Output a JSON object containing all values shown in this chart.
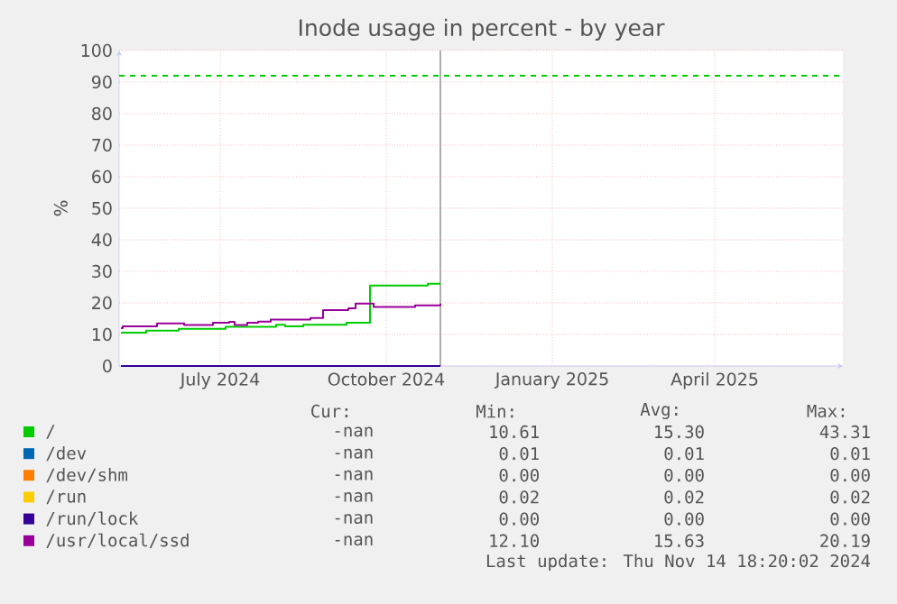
{
  "chart_data": {
    "type": "step",
    "title": "Inode usage in percent - by year",
    "ylabel": "%",
    "xlim": [
      "2024-05-06",
      "2025-06-11"
    ],
    "ylim": [
      0,
      100
    ],
    "xticks": [
      {
        "value": "2024-07-01",
        "label": "July 2024"
      },
      {
        "value": "2024-10-01",
        "label": "October 2024"
      },
      {
        "value": "2025-01-01",
        "label": "January 2025"
      },
      {
        "value": "2025-04-01",
        "label": "April 2025"
      }
    ],
    "yticks": [
      0,
      10,
      20,
      30,
      40,
      50,
      60,
      70,
      80,
      90,
      100
    ],
    "grid": true,
    "legend": "bottom",
    "series": [
      {
        "name": "/",
        "color": "#00cc00",
        "x": [
          "2024-05-07",
          "2024-05-21",
          "2024-06-08",
          "2024-07-04",
          "2024-08-01",
          "2024-08-06",
          "2024-08-16",
          "2024-09-09",
          "2024-09-22",
          "2024-10-24",
          "2024-10-31"
        ],
        "values": [
          10.6,
          11.2,
          11.8,
          12.4,
          13.1,
          12.6,
          13.1,
          13.7,
          25.5,
          26.1,
          26.1
        ]
      },
      {
        "name": "/dev",
        "color": "#0066b3",
        "values": [
          null,
          null
        ]
      },
      {
        "name": "/dev/shm",
        "color": "#ff8000",
        "values": [
          null,
          null
        ]
      },
      {
        "name": "/run",
        "color": "#ffcc00",
        "values": [
          null,
          null
        ]
      },
      {
        "name": "/run/lock",
        "color": "#330099",
        "x": [
          "2024-05-07",
          "2024-10-31"
        ],
        "values": [
          0,
          0
        ]
      },
      {
        "name": "/usr/local/ssd",
        "color": "#990099",
        "x": [
          "2024-05-07",
          "2024-05-08",
          "2024-05-27",
          "2024-06-11",
          "2024-06-27",
          "2024-07-06",
          "2024-07-09",
          "2024-07-16",
          "2024-07-22",
          "2024-07-29",
          "2024-08-20",
          "2024-08-27",
          "2024-09-10",
          "2024-09-14",
          "2024-09-24",
          "2024-10-17",
          "2024-10-31"
        ],
        "values": [
          12.0,
          12.6,
          13.5,
          13.0,
          13.7,
          14.0,
          13.0,
          13.7,
          14.1,
          14.7,
          15.2,
          17.7,
          18.3,
          19.8,
          18.7,
          19.2,
          19.8
        ]
      }
    ],
    "ref_lines": [
      {
        "axis": "y",
        "value": 92,
        "color": "#00cc00",
        "line_style": "dashed"
      },
      {
        "axis": "x",
        "value": "2024-10-31",
        "color": "#999999",
        "line_style": "solid"
      }
    ],
    "annotations": [
      "Cur:",
      "Min:",
      "Avg:",
      "Max:",
      "-nan",
      "10.61",
      "15.30",
      "43.31",
      "-nan",
      "0.01",
      "0.01",
      "0.01",
      "-nan",
      "0.00",
      "0.00",
      "0.00",
      "-nan",
      "0.02",
      "0.02",
      "0.02",
      "-nan",
      "0.00",
      "0.00",
      "0.00",
      "-nan",
      "12.10",
      "15.63",
      "20.19",
      "Last update: Thu Nov 14 18:20:02 2024"
    ]
  }
}
